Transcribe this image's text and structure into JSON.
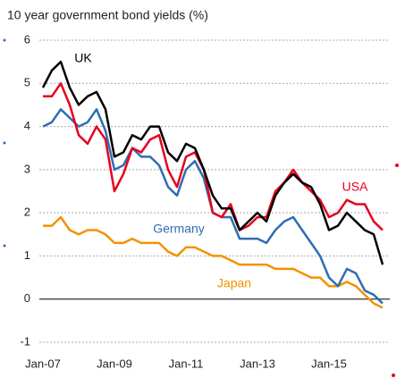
{
  "chart_data": {
    "type": "line",
    "title": "10 year government bond yields (%)",
    "x": [
      2007,
      2007.25,
      2007.5,
      2007.75,
      2008,
      2008.25,
      2008.5,
      2008.75,
      2009,
      2009.25,
      2009.5,
      2009.75,
      2010,
      2010.25,
      2010.5,
      2010.75,
      2011,
      2011.25,
      2011.5,
      2011.75,
      2012,
      2012.25,
      2012.5,
      2012.75,
      2013,
      2013.25,
      2013.5,
      2013.75,
      2014,
      2014.25,
      2014.5,
      2014.75,
      2015,
      2015.25,
      2015.5,
      2015.75,
      2016,
      2016.25,
      2016.5
    ],
    "series": [
      {
        "name": "Japan",
        "color": "#f39200",
        "values": [
          1.7,
          1.7,
          1.9,
          1.6,
          1.5,
          1.6,
          1.6,
          1.5,
          1.3,
          1.3,
          1.4,
          1.3,
          1.3,
          1.3,
          1.1,
          1.0,
          1.2,
          1.2,
          1.1,
          1.0,
          1.0,
          0.9,
          0.8,
          0.8,
          0.8,
          0.8,
          0.7,
          0.7,
          0.7,
          0.6,
          0.5,
          0.5,
          0.3,
          0.3,
          0.4,
          0.3,
          0.1,
          -0.1,
          -0.2
        ]
      },
      {
        "name": "Germany",
        "color": "#2e6db4",
        "values": [
          4.0,
          4.1,
          4.4,
          4.2,
          4.0,
          4.1,
          4.4,
          3.9,
          3.0,
          3.1,
          3.5,
          3.3,
          3.3,
          3.1,
          2.6,
          2.4,
          3.0,
          3.2,
          2.8,
          2.0,
          1.9,
          1.9,
          1.4,
          1.4,
          1.4,
          1.3,
          1.6,
          1.8,
          1.9,
          1.6,
          1.3,
          1.0,
          0.5,
          0.3,
          0.7,
          0.6,
          0.2,
          0.1,
          -0.1
        ]
      },
      {
        "name": "USA",
        "color": "#e8001c",
        "values": [
          4.7,
          4.7,
          5.0,
          4.5,
          3.8,
          3.6,
          4.0,
          3.7,
          2.5,
          2.9,
          3.5,
          3.4,
          3.7,
          3.8,
          3.0,
          2.6,
          3.3,
          3.4,
          3.0,
          2.0,
          1.9,
          2.2,
          1.6,
          1.7,
          1.9,
          1.9,
          2.5,
          2.7,
          3.0,
          2.7,
          2.5,
          2.3,
          1.9,
          2.0,
          2.3,
          2.2,
          2.2,
          1.8,
          1.6
        ]
      },
      {
        "name": "UK",
        "color": "#000000",
        "values": [
          4.9,
          5.3,
          5.5,
          4.9,
          4.5,
          4.7,
          4.8,
          4.4,
          3.3,
          3.4,
          3.8,
          3.7,
          4.0,
          4.0,
          3.4,
          3.2,
          3.6,
          3.5,
          3.0,
          2.4,
          2.1,
          2.1,
          1.6,
          1.8,
          2.0,
          1.8,
          2.4,
          2.7,
          2.9,
          2.7,
          2.6,
          2.2,
          1.6,
          1.7,
          2.0,
          1.8,
          1.6,
          1.5,
          0.8
        ]
      }
    ],
    "xlim": [
      2007,
      2016.7
    ],
    "xticks": [
      {
        "value": 2007,
        "label": "Jan-07"
      },
      {
        "value": 2009,
        "label": "Jan-09"
      },
      {
        "value": 2011,
        "label": "Jan-11"
      },
      {
        "value": 2013,
        "label": "Jan-13"
      },
      {
        "value": 2015,
        "label": "Jan-15"
      }
    ],
    "ylim": [
      -1,
      6
    ],
    "yticks": [
      -1,
      0,
      1,
      2,
      3,
      4,
      5,
      6
    ],
    "grid": true
  }
}
